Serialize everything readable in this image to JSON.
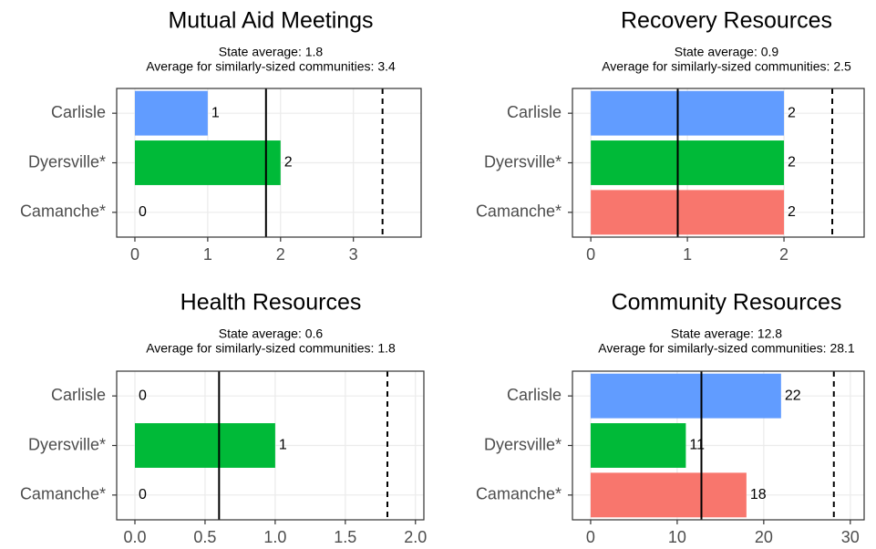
{
  "chart_data": [
    {
      "type": "bar",
      "orientation": "horizontal",
      "title": "Mutual Aid Meetings",
      "reference_lines": [
        {
          "label": "State average: 1.8",
          "value": 1.8,
          "dash": "solid"
        },
        {
          "label": "Average for similarly-sized communities: 3.4",
          "value": 3.4,
          "dash": "dashed"
        }
      ],
      "categories": [
        "Carlisle",
        "Dyersville*",
        "Camanche*"
      ],
      "values": [
        1,
        2,
        0
      ],
      "colors": [
        "#619CFF",
        "#00BA38",
        "#F8766D"
      ],
      "xlim": [
        -0.25,
        3.93
      ],
      "xticks": [
        0,
        1,
        2,
        3
      ],
      "grid": true
    },
    {
      "type": "bar",
      "orientation": "horizontal",
      "title": "Recovery Resources",
      "reference_lines": [
        {
          "label": "State average: 0.9",
          "value": 0.9,
          "dash": "solid"
        },
        {
          "label": "Average for similarly-sized communities: 2.5",
          "value": 2.5,
          "dash": "dashed"
        }
      ],
      "categories": [
        "Carlisle",
        "Dyersville*",
        "Camanche*"
      ],
      "values": [
        2,
        2,
        2
      ],
      "colors": [
        "#619CFF",
        "#00BA38",
        "#F8766D"
      ],
      "xlim": [
        -0.19,
        2.83
      ],
      "xticks": [
        0,
        1,
        2
      ],
      "grid": true
    },
    {
      "type": "bar",
      "orientation": "horizontal",
      "title": "Health Resources",
      "reference_lines": [
        {
          "label": "State average: 0.6",
          "value": 0.6,
          "dash": "solid"
        },
        {
          "label": "Average for similarly-sized communities: 1.8",
          "value": 1.8,
          "dash": "dashed"
        }
      ],
      "categories": [
        "Carlisle",
        "Dyersville*",
        "Camanche*"
      ],
      "values": [
        0,
        1,
        0
      ],
      "colors": [
        "#619CFF",
        "#00BA38",
        "#F8766D"
      ],
      "xlim": [
        -0.13,
        2.06
      ],
      "xticks": [
        {
          "value": 0,
          "label": "0.0"
        },
        0.5,
        {
          "value": 1,
          "label": "1.0"
        },
        1.5,
        {
          "value": 2,
          "label": "2.0"
        }
      ],
      "grid": true
    },
    {
      "type": "bar",
      "orientation": "horizontal",
      "title": "Community Resources",
      "reference_lines": [
        {
          "label": "State average: 12.8",
          "value": 12.8,
          "dash": "solid"
        },
        {
          "label": "Average for similarly-sized communities: 28.1",
          "value": 28.1,
          "dash": "dashed"
        }
      ],
      "categories": [
        "Carlisle",
        "Dyersville*",
        "Camanche*"
      ],
      "values": [
        22,
        11,
        18
      ],
      "colors": [
        "#619CFF",
        "#00BA38",
        "#F8766D"
      ],
      "xlim": [
        -2.1,
        31.6
      ],
      "xticks": [
        0,
        10,
        20,
        30
      ],
      "grid": true
    }
  ]
}
